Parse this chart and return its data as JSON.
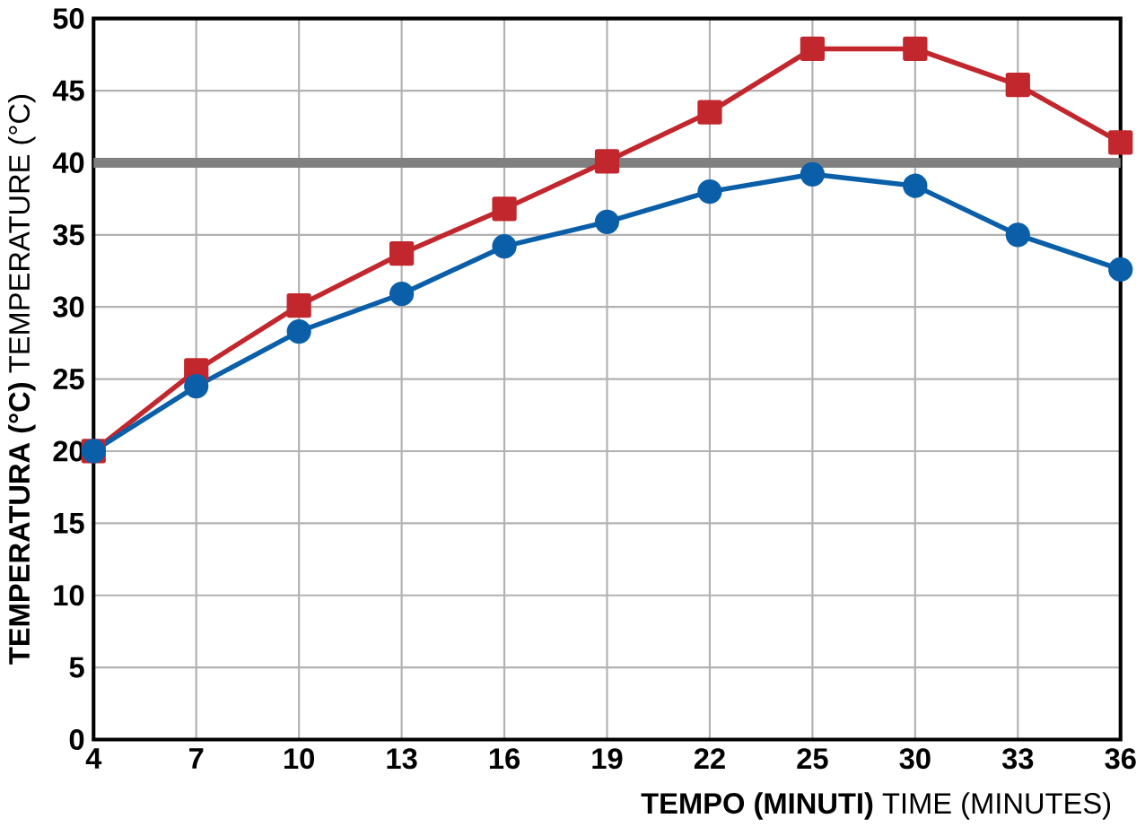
{
  "chart_data": {
    "type": "line",
    "xlabel": "**TEMPO (MINUTI)** TIME (MINUTES)",
    "ylabel": "**TEMPERATURA (°C)** TEMPERATURE (°C)",
    "categories": [
      "4",
      "7",
      "10",
      "13",
      "16",
      "19",
      "22",
      "25",
      "30",
      "33",
      "36"
    ],
    "series": [
      {
        "color": "#c1272d",
        "marker": "square",
        "values": [
          20,
          25.6,
          30.1,
          33.7,
          36.8,
          40.1,
          43.5,
          47.9,
          47.9,
          45.4,
          41.4
        ]
      },
      {
        "color": "#0a5fa8",
        "marker": "circle",
        "values": [
          20,
          24.5,
          28.3,
          30.9,
          34.2,
          35.9,
          38,
          39.2,
          38.4,
          35,
          32.6
        ]
      }
    ],
    "ylim": [
      0,
      50
    ],
    "yticks": [
      0,
      5,
      10,
      15,
      20,
      25,
      30,
      35,
      40,
      45,
      50
    ],
    "ref_lines": [
      {
        "axis": "y",
        "value": 40,
        "color": "#808080"
      }
    ],
    "grid": true,
    "line_style": "solid"
  }
}
